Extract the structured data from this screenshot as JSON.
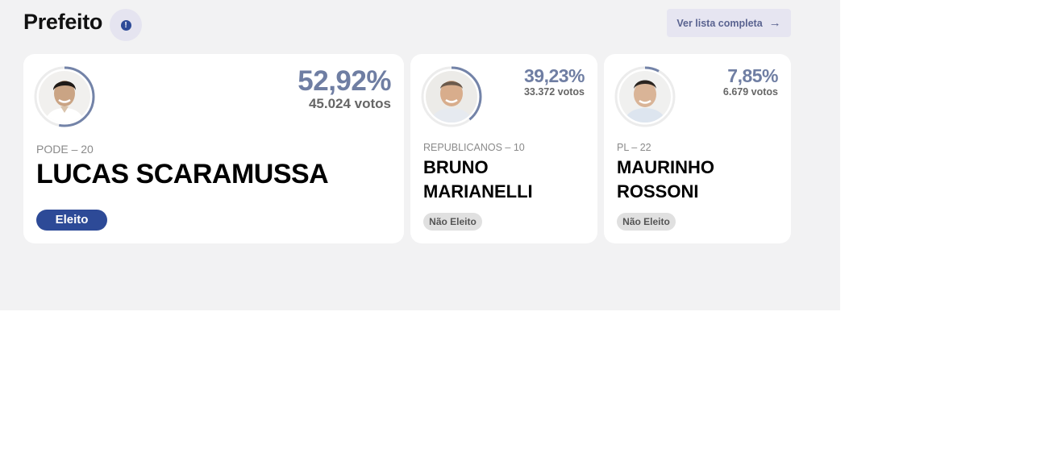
{
  "header": {
    "title": "Prefeito",
    "info_glyph": "!",
    "list_button": "Ver lista completa",
    "list_arrow": "→"
  },
  "colors": {
    "accent": "#2d4a97",
    "percent": "#6f7ea3",
    "ring": "#7383a8",
    "panel_bg": "#f2f2f3"
  },
  "candidates": [
    {
      "party": "PODE – 20",
      "name": "LUCAS SCARAMUSSA",
      "percent": "52,92%",
      "percent_value": 52.92,
      "votes": "45.024 votos",
      "status": "Eleito"
    },
    {
      "party": "REPUBLICANOS – 10",
      "name": "BRUNO MARIANELLI",
      "percent": "39,23%",
      "percent_value": 39.23,
      "votes": "33.372 votos",
      "status": "Não Eleito"
    },
    {
      "party": "PL – 22",
      "name": "MAURINHO ROSSONI",
      "percent": "7,85%",
      "percent_value": 7.85,
      "votes": "6.679 votos",
      "status": "Não Eleito"
    }
  ]
}
